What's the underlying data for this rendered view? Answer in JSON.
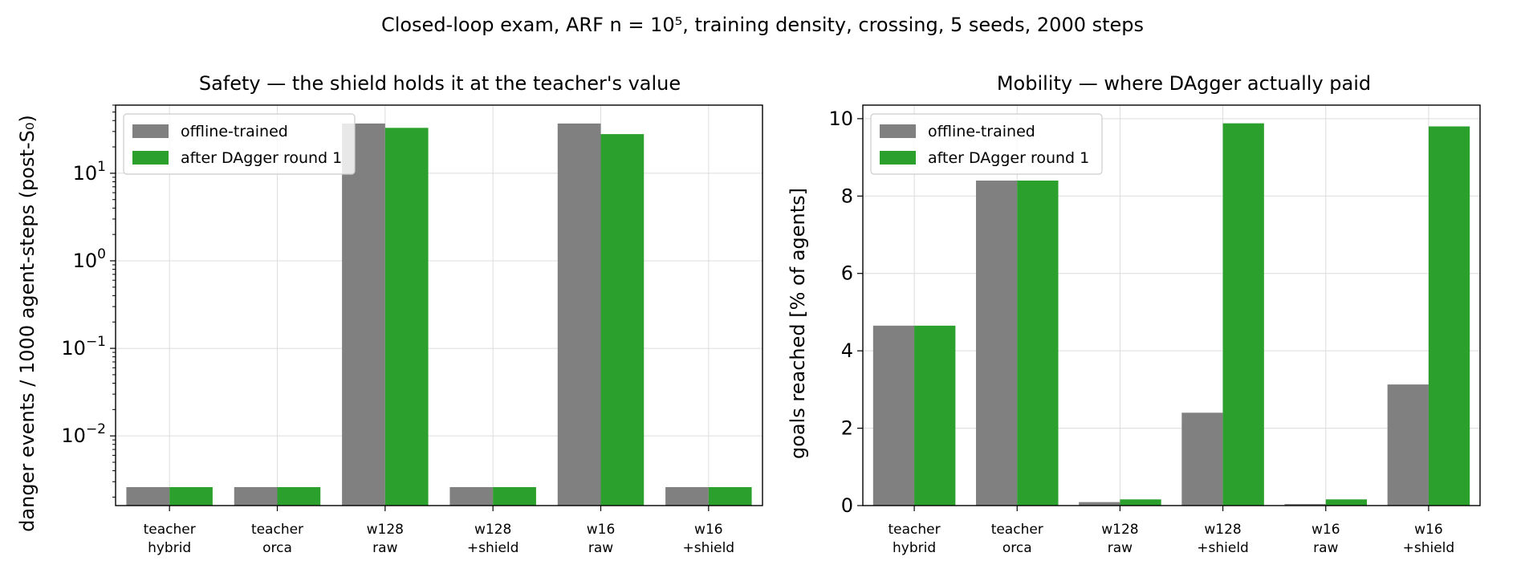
{
  "figure": {
    "suptitle": "Closed-loop exam, ARF n = 10⁵, training density, crossing, 5 seeds, 2000 steps",
    "bar_colors": {
      "offline": "#808080",
      "dagger": "#2ca02c"
    }
  },
  "chart_data": [
    {
      "type": "bar",
      "title": "Safety — the shield holds it at the teacher's value",
      "xlabel": "",
      "ylabel": "danger events / 1000 agent-steps (post-S₀)",
      "yscale": "log",
      "ylim": [
        0.0016,
        60
      ],
      "grid": true,
      "legend_position": "upper-left",
      "categories": [
        [
          "teacher",
          "hybrid"
        ],
        [
          "teacher",
          "orca"
        ],
        [
          "w128",
          "raw"
        ],
        [
          "w128",
          "+shield"
        ],
        [
          "w16",
          "raw"
        ],
        [
          "w16",
          "+shield"
        ]
      ],
      "yticks": [
        {
          "value": 0.01,
          "base": "10",
          "exp": "−2"
        },
        {
          "value": 0.1,
          "base": "10",
          "exp": "−1"
        },
        {
          "value": 1,
          "base": "10",
          "exp": "0"
        },
        {
          "value": 10,
          "base": "10",
          "exp": "1"
        }
      ],
      "series": [
        {
          "name": "offline-trained",
          "color": "#808080",
          "values": [
            0.0026,
            0.0026,
            37,
            0.0026,
            37,
            0.0026
          ]
        },
        {
          "name": "after DAgger round 1",
          "color": "#2ca02c",
          "values": [
            0.0026,
            0.0026,
            33,
            0.0026,
            28,
            0.0026
          ]
        }
      ]
    },
    {
      "type": "bar",
      "title": "Mobility — where DAgger actually paid",
      "xlabel": "",
      "ylabel": "goals reached [% of agents]",
      "yscale": "linear",
      "ylim": [
        0,
        10.35
      ],
      "grid": true,
      "legend_position": "upper-left",
      "categories": [
        [
          "teacher",
          "hybrid"
        ],
        [
          "teacher",
          "orca"
        ],
        [
          "w128",
          "raw"
        ],
        [
          "w128",
          "+shield"
        ],
        [
          "w16",
          "raw"
        ],
        [
          "w16",
          "+shield"
        ]
      ],
      "yticks": [
        {
          "value": 0,
          "label": "0"
        },
        {
          "value": 2,
          "label": "2"
        },
        {
          "value": 4,
          "label": "4"
        },
        {
          "value": 6,
          "label": "6"
        },
        {
          "value": 8,
          "label": "8"
        },
        {
          "value": 10,
          "label": "10"
        }
      ],
      "series": [
        {
          "name": "offline-trained",
          "color": "#808080",
          "values": [
            4.65,
            8.4,
            0.09,
            2.4,
            0.04,
            3.13
          ]
        },
        {
          "name": "after DAgger round 1",
          "color": "#2ca02c",
          "values": [
            4.65,
            8.4,
            0.16,
            9.88,
            0.16,
            9.8
          ]
        }
      ]
    }
  ]
}
